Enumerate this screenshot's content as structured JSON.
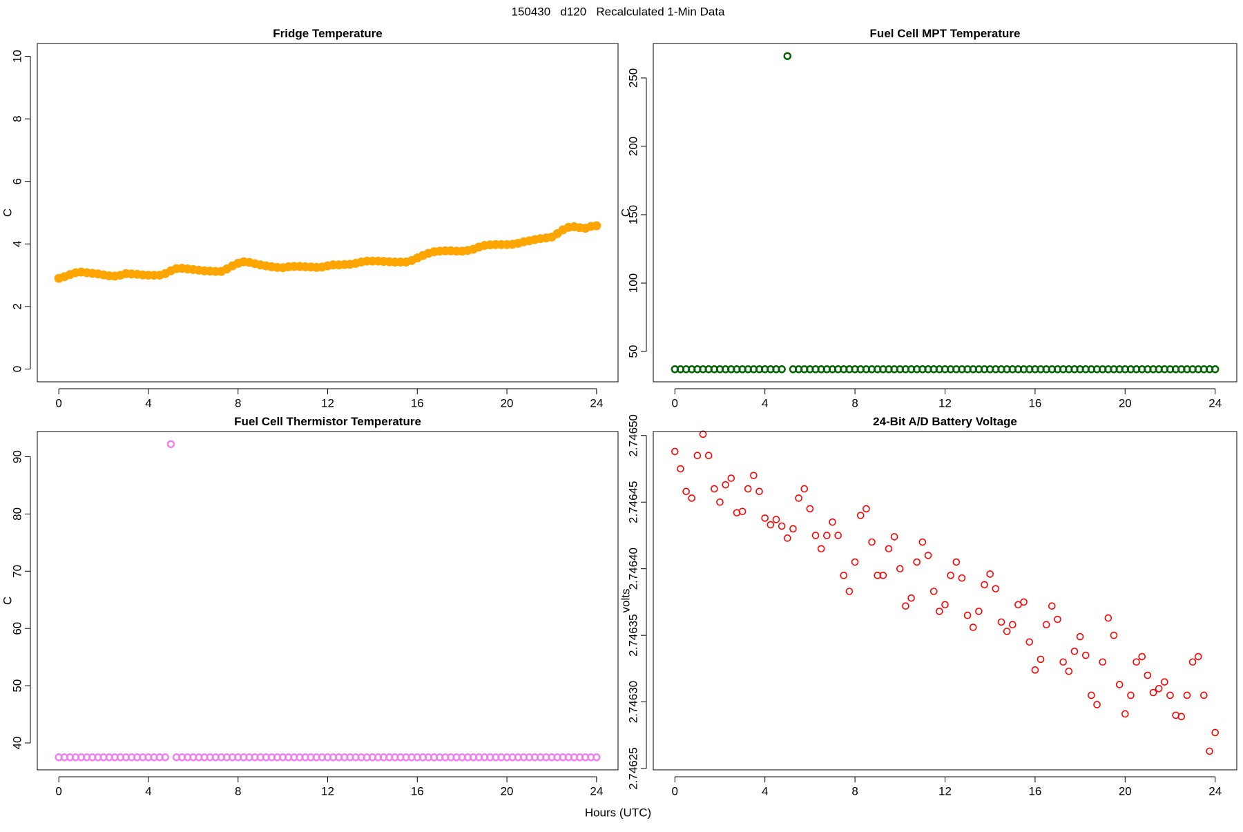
{
  "title": "150430   d120   Recalculated 1-Min Data",
  "x_label": "Hours (UTC)",
  "chart_data": [
    {
      "type": "scatter",
      "title": "Fridge Temperature",
      "y_label": "C",
      "color": "#ffa500",
      "filled": true,
      "xlim": [
        -0.96,
        24.96
      ],
      "xticks": [
        0,
        4,
        8,
        12,
        16,
        20,
        24
      ],
      "ylim": [
        -0.41,
        10.41
      ],
      "yticks": [
        0,
        2,
        4,
        6,
        8,
        10
      ],
      "x": [
        0,
        0.25,
        0.5,
        0.75,
        1,
        1.25,
        1.5,
        1.75,
        2,
        2.25,
        2.5,
        2.75,
        3,
        3.25,
        3.5,
        3.75,
        4,
        4.25,
        4.5,
        4.75,
        5,
        5.25,
        5.5,
        5.75,
        6,
        6.25,
        6.5,
        6.75,
        7,
        7.25,
        7.5,
        7.75,
        8,
        8.25,
        8.5,
        8.75,
        9,
        9.25,
        9.5,
        9.75,
        10,
        10.25,
        10.5,
        10.75,
        11,
        11.25,
        11.5,
        11.75,
        12,
        12.25,
        12.5,
        12.75,
        13,
        13.25,
        13.5,
        13.75,
        14,
        14.25,
        14.5,
        14.75,
        15,
        15.25,
        15.5,
        15.75,
        16,
        16.25,
        16.5,
        16.75,
        17,
        17.25,
        17.5,
        17.75,
        18,
        18.25,
        18.5,
        18.75,
        19,
        19.25,
        19.5,
        19.75,
        20,
        20.25,
        20.5,
        20.75,
        21,
        21.25,
        21.5,
        21.75,
        22,
        22.25,
        22.5,
        22.75,
        23,
        23.25,
        23.5,
        23.75,
        24
      ],
      "values": [
        2.9,
        2.95,
        3.02,
        3.08,
        3.1,
        3.08,
        3.06,
        3.04,
        3.01,
        2.98,
        2.97,
        3.0,
        3.05,
        3.04,
        3.03,
        3.01,
        3.0,
        3.0,
        3.0,
        3.05,
        3.14,
        3.21,
        3.22,
        3.2,
        3.18,
        3.16,
        3.14,
        3.13,
        3.12,
        3.12,
        3.2,
        3.3,
        3.38,
        3.43,
        3.41,
        3.37,
        3.33,
        3.3,
        3.27,
        3.25,
        3.24,
        3.27,
        3.28,
        3.28,
        3.27,
        3.26,
        3.25,
        3.26,
        3.3,
        3.33,
        3.33,
        3.34,
        3.35,
        3.38,
        3.42,
        3.45,
        3.45,
        3.45,
        3.44,
        3.43,
        3.42,
        3.42,
        3.42,
        3.47,
        3.55,
        3.63,
        3.7,
        3.75,
        3.77,
        3.78,
        3.78,
        3.77,
        3.77,
        3.79,
        3.83,
        3.9,
        3.95,
        3.97,
        3.98,
        3.98,
        3.98,
        3.99,
        4.02,
        4.07,
        4.1,
        4.14,
        4.17,
        4.19,
        4.22,
        4.33,
        4.45,
        4.53,
        4.55,
        4.52,
        4.5,
        4.56,
        4.58
      ]
    },
    {
      "type": "scatter",
      "title": "Fuel Cell MPT Temperature",
      "y_label": "C",
      "color": "#006400",
      "filled": false,
      "xlim": [
        -0.96,
        24.96
      ],
      "xticks": [
        0,
        4,
        8,
        12,
        16,
        20,
        24
      ],
      "ylim": [
        27.8,
        275.2
      ],
      "yticks": [
        50,
        100,
        150,
        200,
        250
      ],
      "x": [
        0,
        0.25,
        0.5,
        0.75,
        1,
        1.25,
        1.5,
        1.75,
        2,
        2.25,
        2.5,
        2.75,
        3,
        3.25,
        3.5,
        3.75,
        4,
        4.25,
        4.5,
        4.75,
        5,
        5.25,
        5.5,
        5.75,
        6,
        6.25,
        6.5,
        6.75,
        7,
        7.25,
        7.5,
        7.75,
        8,
        8.25,
        8.5,
        8.75,
        9,
        9.25,
        9.5,
        9.75,
        10,
        10.25,
        10.5,
        10.75,
        11,
        11.25,
        11.5,
        11.75,
        12,
        12.25,
        12.5,
        12.75,
        13,
        13.25,
        13.5,
        13.75,
        14,
        14.25,
        14.5,
        14.75,
        15,
        15.25,
        15.5,
        15.75,
        16,
        16.25,
        16.5,
        16.75,
        17,
        17.25,
        17.5,
        17.75,
        18,
        18.25,
        18.5,
        18.75,
        19,
        19.25,
        19.5,
        19.75,
        20,
        20.25,
        20.5,
        20.75,
        21,
        21.25,
        21.5,
        21.75,
        22,
        22.25,
        22.5,
        22.75,
        23,
        23.25,
        23.5,
        23.75,
        24
      ],
      "values": [
        37,
        37,
        37,
        37,
        37,
        37,
        37,
        37,
        37,
        37,
        37,
        37,
        37,
        37,
        37,
        37,
        37,
        37,
        37,
        37,
        266,
        37,
        37,
        37,
        37,
        37,
        37,
        37,
        37,
        37,
        37,
        37,
        37,
        37,
        37,
        37,
        37,
        37,
        37,
        37,
        37,
        37,
        37,
        37,
        37,
        37,
        37,
        37,
        37,
        37,
        37,
        37,
        37,
        37,
        37,
        37,
        37,
        37,
        37,
        37,
        37,
        37,
        37,
        37,
        37,
        37,
        37,
        37,
        37,
        37,
        37,
        37,
        37,
        37,
        37,
        37,
        37,
        37,
        37,
        37,
        37,
        37,
        37,
        37,
        37,
        37,
        37,
        37,
        37,
        37,
        37,
        37,
        37,
        37,
        37,
        37,
        37
      ]
    },
    {
      "type": "scatter",
      "title": "Fuel Cell Thermistor Temperature",
      "y_label": "C",
      "color": "#ee82ee",
      "filled": false,
      "xlim": [
        -0.96,
        24.96
      ],
      "xticks": [
        0,
        4,
        8,
        12,
        16,
        20,
        24
      ],
      "ylim": [
        35.3,
        94.4
      ],
      "yticks": [
        40,
        50,
        60,
        70,
        80,
        90
      ],
      "x": [
        0,
        0.25,
        0.5,
        0.75,
        1,
        1.25,
        1.5,
        1.75,
        2,
        2.25,
        2.5,
        2.75,
        3,
        3.25,
        3.5,
        3.75,
        4,
        4.25,
        4.5,
        4.75,
        5,
        5.25,
        5.5,
        5.75,
        6,
        6.25,
        6.5,
        6.75,
        7,
        7.25,
        7.5,
        7.75,
        8,
        8.25,
        8.5,
        8.75,
        9,
        9.25,
        9.5,
        9.75,
        10,
        10.25,
        10.5,
        10.75,
        11,
        11.25,
        11.5,
        11.75,
        12,
        12.25,
        12.5,
        12.75,
        13,
        13.25,
        13.5,
        13.75,
        14,
        14.25,
        14.5,
        14.75,
        15,
        15.25,
        15.5,
        15.75,
        16,
        16.25,
        16.5,
        16.75,
        17,
        17.25,
        17.5,
        17.75,
        18,
        18.25,
        18.5,
        18.75,
        19,
        19.25,
        19.5,
        19.75,
        20,
        20.25,
        20.5,
        20.75,
        21,
        21.25,
        21.5,
        21.75,
        22,
        22.25,
        22.5,
        22.75,
        23,
        23.25,
        23.5,
        23.75,
        24
      ],
      "values": [
        37.5,
        37.5,
        37.5,
        37.5,
        37.5,
        37.5,
        37.5,
        37.5,
        37.5,
        37.5,
        37.5,
        37.5,
        37.5,
        37.5,
        37.5,
        37.5,
        37.5,
        37.5,
        37.5,
        37.5,
        92.2,
        37.5,
        37.5,
        37.5,
        37.5,
        37.5,
        37.5,
        37.5,
        37.5,
        37.5,
        37.5,
        37.5,
        37.5,
        37.5,
        37.5,
        37.5,
        37.5,
        37.5,
        37.5,
        37.5,
        37.5,
        37.5,
        37.5,
        37.5,
        37.5,
        37.5,
        37.5,
        37.5,
        37.5,
        37.5,
        37.5,
        37.5,
        37.5,
        37.5,
        37.5,
        37.5,
        37.5,
        37.5,
        37.5,
        37.5,
        37.5,
        37.5,
        37.5,
        37.5,
        37.5,
        37.5,
        37.5,
        37.5,
        37.5,
        37.5,
        37.5,
        37.5,
        37.5,
        37.5,
        37.5,
        37.5,
        37.5,
        37.5,
        37.5,
        37.5,
        37.5,
        37.5,
        37.5,
        37.5,
        37.5,
        37.5,
        37.5,
        37.5,
        37.5,
        37.5,
        37.5,
        37.5,
        37.5,
        37.5,
        37.5,
        37.5,
        37.5
      ]
    },
    {
      "type": "scatter",
      "title": "24-Bit A/D Battery Voltage",
      "y_label": "volts",
      "color": "#ff0000",
      "filled": false,
      "xlim": [
        -0.96,
        24.96
      ],
      "xticks": [
        0,
        4,
        8,
        12,
        16,
        20,
        24
      ],
      "ylim": [
        2.746249,
        2.746503
      ],
      "yticks": [
        2.74625,
        {
          "value": 2.7463,
          "label": "2.74630"
        },
        2.74635,
        {
          "value": 2.7464,
          "label": "2.74640"
        },
        2.74645,
        {
          "value": 2.7465,
          "label": "2.74650"
        }
      ],
      "x": [
        0,
        0.25,
        0.5,
        0.75,
        1,
        1.25,
        1.5,
        1.75,
        2,
        2.25,
        2.5,
        2.75,
        3,
        3.25,
        3.5,
        3.75,
        4,
        4.25,
        4.5,
        4.75,
        5,
        5.25,
        5.5,
        5.75,
        6,
        6.25,
        6.5,
        6.75,
        7,
        7.25,
        7.5,
        7.75,
        8,
        8.25,
        8.5,
        8.75,
        9,
        9.25,
        9.5,
        9.75,
        10,
        10.25,
        10.5,
        10.75,
        11,
        11.25,
        11.5,
        11.75,
        12,
        12.25,
        12.5,
        12.75,
        13,
        13.25,
        13.5,
        13.75,
        14,
        14.25,
        14.5,
        14.75,
        15,
        15.25,
        15.5,
        15.75,
        16,
        16.25,
        16.5,
        16.75,
        17,
        17.25,
        17.5,
        17.75,
        18,
        18.25,
        18.5,
        18.75,
        19,
        19.25,
        19.5,
        19.75,
        20,
        20.25,
        20.5,
        20.75,
        21,
        21.25,
        21.5,
        21.75,
        22,
        22.25,
        22.5,
        22.75,
        23,
        23.25,
        23.5,
        23.75,
        24
      ],
      "values": [
        2.746488,
        2.746475,
        2.746458,
        2.746453,
        2.746485,
        2.746501,
        2.746485,
        2.74646,
        2.74645,
        2.746463,
        2.746468,
        2.746442,
        2.746443,
        2.74646,
        2.74647,
        2.746458,
        2.746438,
        2.746433,
        2.746437,
        2.746432,
        2.746423,
        2.74643,
        2.746453,
        2.74646,
        2.746445,
        2.746425,
        2.746415,
        2.746425,
        2.746435,
        2.746425,
        2.746395,
        2.746383,
        2.746405,
        2.74644,
        2.746445,
        2.74642,
        2.746395,
        2.746395,
        2.746415,
        2.746424,
        2.7464,
        2.746372,
        2.746378,
        2.746405,
        2.74642,
        2.74641,
        2.746383,
        2.746368,
        2.746373,
        2.746395,
        2.746405,
        2.746393,
        2.746365,
        2.746356,
        2.746368,
        2.746388,
        2.746396,
        2.746385,
        2.74636,
        2.746353,
        2.746358,
        2.746373,
        2.746375,
        2.746345,
        2.746324,
        2.746332,
        2.746358,
        2.746372,
        2.746362,
        2.74633,
        2.746323,
        2.746338,
        2.746349,
        2.746335,
        2.746305,
        2.746298,
        2.74633,
        2.746363,
        2.74635,
        2.746313,
        2.746291,
        2.746305,
        2.74633,
        2.746334,
        2.74632,
        2.746307,
        2.74631,
        2.746315,
        2.746305,
        2.74629,
        2.746289,
        2.746305,
        2.74633,
        2.746334,
        2.746305,
        2.746263,
        2.746277
      ]
    }
  ]
}
